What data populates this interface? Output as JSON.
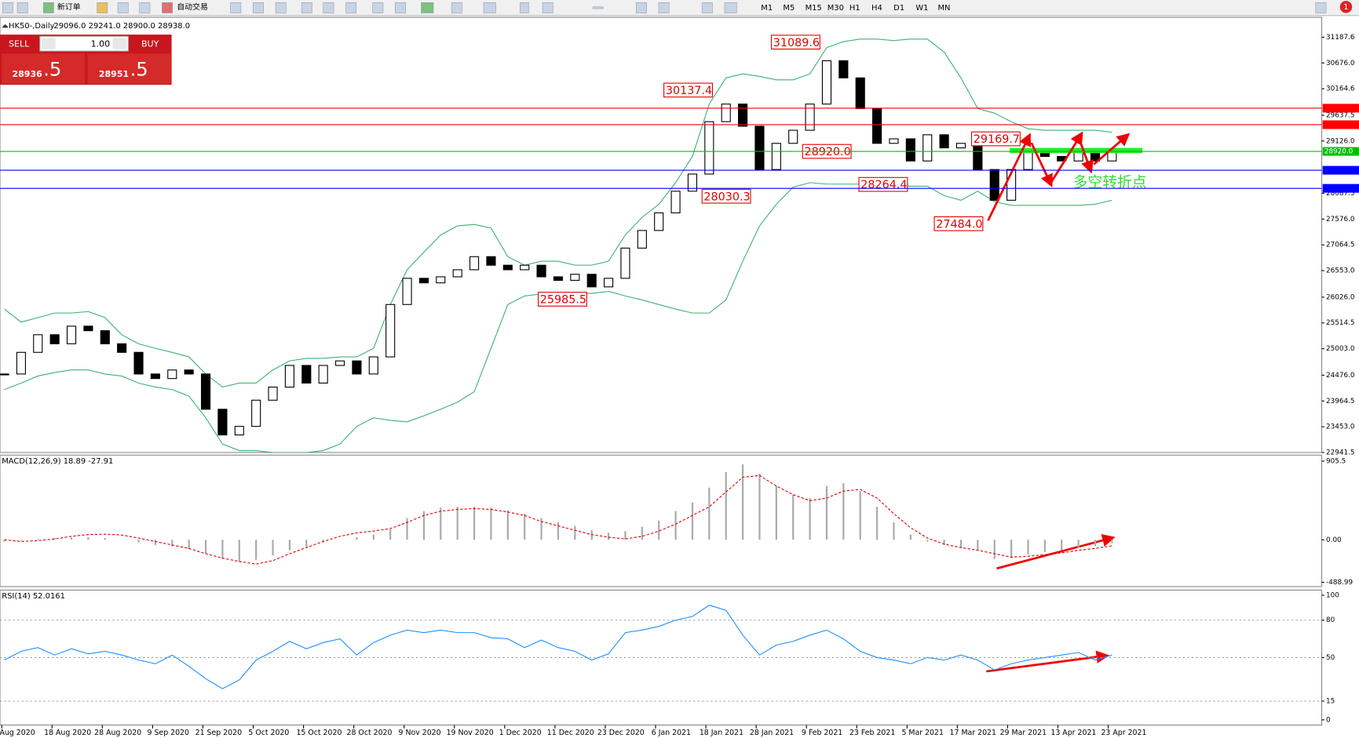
{
  "toolbar": {
    "new_order": "新订单",
    "auto_trade": "自动交易",
    "timeframes": [
      "M1",
      "M5",
      "M15",
      "M30",
      "H1",
      "H4",
      "D1",
      "W1",
      "MN"
    ],
    "badge": "1"
  },
  "trade_panel": {
    "sell": "SELL",
    "lot": "1.00",
    "buy": "BUY",
    "sell_price": "28936",
    "sell_frac": ".5",
    "buy_price": "28951",
    "buy_frac": ".5"
  },
  "chart_data": {
    "type": "candlestick",
    "title": "HK50-,Daily",
    "ohlc_header": "29096.0 29241.0 28900.0 28938.0",
    "x_labels": [
      "Aug 2020",
      "18 Aug 2020",
      "28 Aug 2020",
      "9 Sep 2020",
      "21 Sep 2020",
      "5 Oct 2020",
      "15 Oct 2020",
      "28 Oct 2020",
      "9 Nov 2020",
      "19 Nov 2020",
      "1 Dec 2020",
      "11 Dec 2020",
      "23 Dec 2020",
      "6 Jan 2021",
      "18 Jan 2021",
      "28 Jan 2021",
      "9 Feb 2021",
      "23 Feb 2021",
      "5 Mar 2021",
      "17 Mar 2021",
      "29 Mar 2021",
      "13 Apr 2021",
      "23 Apr 2021"
    ],
    "closes": [
      24500,
      24930,
      25280,
      25100,
      25450,
      25360,
      25100,
      24930,
      24500,
      24410,
      24580,
      24500,
      23800,
      23290,
      23460,
      23980,
      24240,
      24670,
      24320,
      24670,
      24760,
      24500,
      24840,
      25880,
      26400,
      26310,
      26430,
      26570,
      26830,
      26660,
      26570,
      26660,
      26430,
      26360,
      26480,
      26230,
      26400,
      27000,
      27350,
      27700,
      28130,
      28470,
      29510,
      29860,
      29420,
      28560,
      29080,
      29340,
      29860,
      30720,
      30380,
      29770,
      29080,
      29170,
      28730,
      29250,
      28990,
      29080,
      28560,
      27950,
      28560,
      28910,
      28820,
      28730,
      28910,
      28730,
      28938
    ],
    "bands": {
      "upper": [
        25790,
        25530,
        25620,
        25710,
        25710,
        25740,
        25620,
        25280,
        25100,
        25010,
        24930,
        24840,
        24500,
        24240,
        24320,
        24320,
        24580,
        24760,
        24810,
        24810,
        24840,
        24840,
        25010,
        25880,
        26570,
        26920,
        27260,
        27440,
        27470,
        27400,
        26830,
        26660,
        26740,
        26740,
        26660,
        26660,
        26740,
        27260,
        27610,
        27870,
        28300,
        28820,
        29860,
        30380,
        30460,
        30410,
        30340,
        30340,
        30460,
        30980,
        31100,
        31150,
        31150,
        31120,
        31150,
        31150,
        30890,
        30380,
        29770,
        29680,
        29510,
        29370,
        29340,
        29340,
        29340,
        29340,
        29300
      ],
      "lower": [
        24190,
        24320,
        24460,
        24530,
        24580,
        24580,
        24500,
        24460,
        24320,
        24240,
        24190,
        24060,
        23630,
        23110,
        22980,
        22980,
        22940,
        22940,
        22940,
        22980,
        23110,
        23460,
        23630,
        23580,
        23550,
        23670,
        23800,
        23940,
        24150,
        25010,
        25880,
        26050,
        26090,
        26100,
        26100,
        26100,
        26140,
        26050,
        25970,
        25880,
        25790,
        25710,
        25710,
        25970,
        26740,
        27440,
        27870,
        28210,
        28300,
        28270,
        28270,
        28270,
        28270,
        28250,
        28230,
        28230,
        28040,
        27950,
        28130,
        27920,
        27850,
        27850,
        27850,
        27850,
        27850,
        27870,
        27950
      ],
      "color": "#3cb371"
    },
    "ylim": [
      22941.5,
      31187.6
    ],
    "yticks": [
      31187.6,
      {
        "value": 30676,
        "label": "30676.0"
      },
      30164.6,
      29637.5,
      {
        "value": 29126,
        "label": "29126.0"
      },
      28087.5,
      {
        "value": 27576,
        "label": "27576.0"
      },
      27064.5,
      {
        "value": 26553,
        "label": "26553.0"
      },
      {
        "value": 26026,
        "label": "26026.0"
      },
      25514.5,
      {
        "value": 25003,
        "label": "25003.0"
      },
      {
        "value": 24476,
        "label": "24476.0"
      },
      23964.5,
      {
        "value": 23453,
        "label": "23453.0"
      },
      22941.5
    ],
    "levels": [
      {
        "value": 29778.4,
        "color": "#ff0000"
      },
      {
        "value": 29450.7,
        "color": "#ff0000"
      },
      {
        "value": 28920,
        "label": "28920.0",
        "color": "#00c000"
      },
      {
        "value": 28545.3,
        "color": "#0000ff"
      },
      {
        "value": 28186.3,
        "color": "#0000ff"
      }
    ],
    "annotations": [
      31089.6,
      30137.4,
      29169.7,
      {
        "value": 28920,
        "label": "28920.0"
      },
      28264.4,
      28030.3,
      {
        "value": 27484,
        "label": "27484.0"
      },
      25985.5
    ],
    "note": "多空转折点",
    "macd": {
      "title": "MACD(12,26,9) 18.89 -27.91",
      "ylim": [
        -488.99,
        905.5
      ],
      "yticks": [
        905.5,
        {
          "value": 0,
          "label": "0.00"
        },
        -488.99
      ],
      "histogram": [
        -20,
        -10,
        10,
        20,
        25,
        30,
        20,
        0,
        -30,
        -60,
        -80,
        -110,
        -160,
        -220,
        -250,
        -230,
        -180,
        -120,
        -80,
        -30,
        0,
        30,
        60,
        120,
        250,
        330,
        370,
        380,
        380,
        370,
        340,
        300,
        250,
        200,
        160,
        110,
        80,
        100,
        150,
        220,
        330,
        430,
        600,
        780,
        870,
        760,
        620,
        520,
        480,
        620,
        650,
        560,
        380,
        200,
        60,
        -20,
        -60,
        -90,
        -120,
        -220,
        -200,
        -170,
        -140,
        -120,
        -90,
        -70,
        -40
      ],
      "signal": [
        0,
        -20,
        -10,
        10,
        40,
        60,
        65,
        55,
        20,
        -20,
        -60,
        -100,
        -160,
        -210,
        -250,
        -280,
        -240,
        -160,
        -90,
        -20,
        40,
        80,
        100,
        130,
        200,
        280,
        330,
        350,
        360,
        350,
        320,
        280,
        210,
        160,
        110,
        60,
        30,
        10,
        40,
        100,
        180,
        280,
        380,
        550,
        720,
        740,
        620,
        520,
        450,
        480,
        560,
        580,
        480,
        300,
        140,
        20,
        -50,
        -90,
        -120,
        -160,
        -200,
        -190,
        -170,
        -150,
        -120,
        -100,
        -70
      ]
    },
    "rsi": {
      "title": "RSI(14) 52.0161",
      "ylim": [
        0,
        100
      ],
      "yticks": [
        100,
        80,
        50,
        15,
        0
      ],
      "grid": [
        80,
        50,
        15
      ],
      "values": [
        48,
        55,
        58,
        52,
        57,
        53,
        55,
        52,
        48,
        45,
        52,
        43,
        33,
        25,
        32,
        48,
        55,
        63,
        57,
        62,
        65,
        52,
        62,
        68,
        72,
        70,
        72,
        70,
        70,
        66,
        65,
        58,
        64,
        58,
        55,
        48,
        53,
        70,
        72,
        75,
        80,
        83,
        92,
        88,
        68,
        52,
        60,
        63,
        68,
        72,
        65,
        55,
        50,
        48,
        45,
        50,
        48,
        52,
        48,
        40,
        45,
        48,
        50,
        52,
        54,
        48,
        52
      ]
    }
  }
}
